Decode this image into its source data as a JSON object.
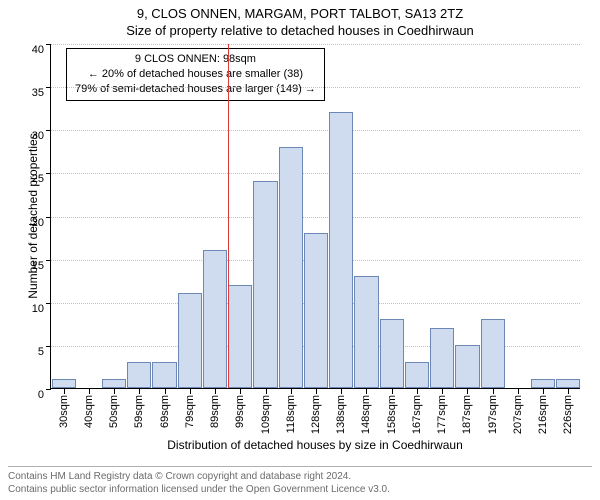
{
  "titles": {
    "main": "9, CLOS ONNEN, MARGAM, PORT TALBOT, SA13 2TZ",
    "sub": "Size of property relative to detached houses in Coedhirwaun"
  },
  "chart": {
    "type": "histogram",
    "bar_fill": "#cfdbef",
    "bar_stroke": "#6e88b5",
    "background_color": "#ffffff",
    "grid_color": "#c0c0c0",
    "axis_color": "#000000",
    "reference_line": {
      "x_index": 7,
      "color": "#e13a3a"
    },
    "x_categories": [
      "30sqm",
      "40sqm",
      "50sqm",
      "59sqm",
      "69sqm",
      "79sqm",
      "89sqm",
      "99sqm",
      "109sqm",
      "118sqm",
      "128sqm",
      "138sqm",
      "148sqm",
      "158sqm",
      "167sqm",
      "177sqm",
      "187sqm",
      "197sqm",
      "207sqm",
      "216sqm",
      "226sqm"
    ],
    "values": [
      1,
      0,
      1,
      3,
      3,
      11,
      16,
      12,
      24,
      28,
      18,
      32,
      13,
      8,
      3,
      7,
      5,
      8,
      0,
      1,
      1
    ],
    "ylim": [
      0,
      40
    ],
    "ytick_step": 5,
    "bar_width_ratio": 0.96,
    "y_label": "Number of detached properties",
    "x_label": "Distribution of detached houses by size in Coedhirwaun",
    "label_fontsize": 12,
    "tick_fontsize": 11
  },
  "annotation": {
    "lines": [
      "9 CLOS ONNEN: 98sqm",
      "← 20% of detached houses are smaller (38)",
      "79% of semi-detached houses are larger (149) →"
    ]
  },
  "footer": {
    "line1": "Contains HM Land Registry data © Crown copyright and database right 2024.",
    "line2": "Contains public sector information licensed under the Open Government Licence v3.0."
  }
}
